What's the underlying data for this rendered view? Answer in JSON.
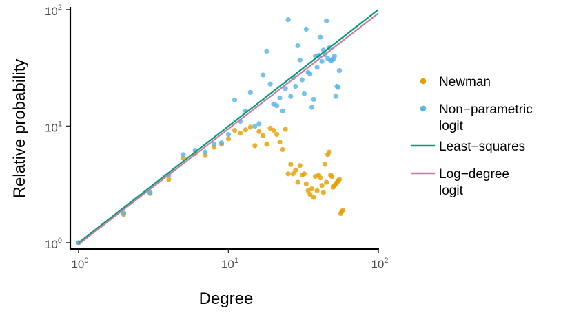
{
  "chart_data": {
    "type": "scatter",
    "xlabel": "Degree",
    "ylabel": "Relative probability",
    "x_scale": "log",
    "y_scale": "log",
    "xlim": [
      1,
      100
    ],
    "ylim": [
      1,
      100
    ],
    "x_ticks": [
      {
        "base": "10",
        "exp": "0",
        "value": 1
      },
      {
        "base": "10",
        "exp": "1",
        "value": 10
      },
      {
        "base": "10",
        "exp": "2",
        "value": 100
      }
    ],
    "y_ticks": [
      {
        "base": "10",
        "exp": "0",
        "value": 1
      },
      {
        "base": "10",
        "exp": "1",
        "value": 10
      },
      {
        "base": "10",
        "exp": "2",
        "value": 100
      }
    ],
    "grid": false,
    "legend_position": "right",
    "colors": {
      "newman": "#E69F00",
      "nonparametric": "#56B4E9",
      "least_squares": "#009E73",
      "log_degree": "#CC79A7"
    },
    "series": [
      {
        "name": "Newman",
        "kind": "points",
        "color": "#E69F00",
        "points": [
          [
            1,
            1.0
          ],
          [
            2,
            1.75
          ],
          [
            3,
            2.65
          ],
          [
            4,
            3.5
          ],
          [
            5,
            5.3
          ],
          [
            6,
            5.8
          ],
          [
            7,
            5.6
          ],
          [
            8,
            6.6
          ],
          [
            9,
            7.0
          ],
          [
            10,
            7.8
          ],
          [
            11,
            9.2
          ],
          [
            12,
            8.7
          ],
          [
            13,
            9.3
          ],
          [
            14,
            9.8
          ],
          [
            15,
            6.8
          ],
          [
            16,
            9.0
          ],
          [
            17,
            8.3
          ],
          [
            18,
            7.0
          ],
          [
            19,
            9.6
          ],
          [
            20,
            9.2
          ],
          [
            21,
            8.5
          ],
          [
            22,
            7.3
          ],
          [
            23,
            6.3
          ],
          [
            24,
            9.4
          ],
          [
            25,
            3.9
          ],
          [
            26,
            4.7
          ],
          [
            27,
            3.9
          ],
          [
            28,
            4.2
          ],
          [
            29,
            3.3
          ],
          [
            30,
            4.6
          ],
          [
            31,
            3.8
          ],
          [
            32,
            3.9
          ],
          [
            33,
            3.2
          ],
          [
            34,
            2.8
          ],
          [
            35,
            2.6
          ],
          [
            36,
            2.9
          ],
          [
            37,
            2.45
          ],
          [
            38,
            3.7
          ],
          [
            39,
            2.8
          ],
          [
            40,
            3.8
          ],
          [
            41,
            3.6
          ],
          [
            42,
            3.1
          ],
          [
            43,
            2.7
          ],
          [
            44,
            4.7
          ],
          [
            45,
            3.3
          ],
          [
            46,
            5.7
          ],
          [
            47,
            6.0
          ],
          [
            48,
            3.8
          ],
          [
            49,
            3.7
          ],
          [
            50,
            3.0
          ],
          [
            51,
            3.1
          ],
          [
            52,
            3.2
          ],
          [
            53,
            3.3
          ],
          [
            54,
            3.4
          ],
          [
            55,
            3.5
          ],
          [
            56,
            1.78
          ],
          [
            57,
            1.85
          ],
          [
            58,
            1.9
          ]
        ]
      },
      {
        "name": "Non−parametric logit",
        "kind": "points",
        "color": "#56B4E9",
        "points": [
          [
            1,
            1.0
          ],
          [
            2,
            1.8
          ],
          [
            3,
            2.7
          ],
          [
            4,
            3.8
          ],
          [
            5,
            5.7
          ],
          [
            6,
            6.2
          ],
          [
            7,
            6.0
          ],
          [
            8,
            7.0
          ],
          [
            9,
            7.2
          ],
          [
            10,
            8.5
          ],
          [
            11,
            16.8
          ],
          [
            12,
            11.0
          ],
          [
            13,
            13.5
          ],
          [
            14,
            19.5
          ],
          [
            15,
            10.0
          ],
          [
            16,
            10.5
          ],
          [
            17,
            27.5
          ],
          [
            18,
            44.0
          ],
          [
            19,
            23.0
          ],
          [
            20,
            15.5
          ],
          [
            21,
            15.0
          ],
          [
            22,
            17.5
          ],
          [
            23,
            13.5
          ],
          [
            24,
            21.0
          ],
          [
            25,
            82.0
          ],
          [
            26,
            18.0
          ],
          [
            27,
            26.0
          ],
          [
            28,
            22.0
          ],
          [
            29,
            49.0
          ],
          [
            30,
            37.0
          ],
          [
            31,
            25.0
          ],
          [
            32,
            19.0
          ],
          [
            33,
            68.0
          ],
          [
            34,
            29.0
          ],
          [
            35,
            28.0
          ],
          [
            36,
            14.5
          ],
          [
            37,
            17.0
          ],
          [
            38,
            40.0
          ],
          [
            39,
            32.0
          ],
          [
            40,
            40.5
          ],
          [
            41,
            58.0
          ],
          [
            42,
            36.0
          ],
          [
            43,
            45.0
          ],
          [
            44,
            41.0
          ],
          [
            45,
            80.0
          ],
          [
            46,
            38.0
          ],
          [
            47,
            47.0
          ],
          [
            48,
            36.5
          ],
          [
            49,
            37.0
          ],
          [
            50,
            37.5
          ],
          [
            51,
            40.0
          ],
          [
            52,
            18.0
          ],
          [
            53,
            22.0
          ],
          [
            54,
            21.5
          ],
          [
            55,
            30.0
          ]
        ]
      },
      {
        "name": "Least−squares",
        "kind": "line",
        "color": "#009E73",
        "points": [
          [
            1,
            1.0
          ],
          [
            100,
            100.0
          ]
        ]
      },
      {
        "name": "Log−degree logit",
        "kind": "line",
        "color": "#CC79A7",
        "points": [
          [
            1,
            0.97
          ],
          [
            100,
            93.0
          ]
        ]
      }
    ],
    "legend": [
      {
        "key": "newman",
        "kind": "point",
        "color": "#E69F00",
        "lines": [
          "Newman"
        ]
      },
      {
        "key": "nonparametric",
        "kind": "point",
        "color": "#56B4E9",
        "lines": [
          "Non−parametric",
          "logit"
        ]
      },
      {
        "key": "least_squares",
        "kind": "line",
        "color": "#009E73",
        "lines": [
          "Least−squares"
        ]
      },
      {
        "key": "log_degree",
        "kind": "line",
        "color": "#CC79A7",
        "lines": [
          "Log−degree",
          "logit"
        ]
      }
    ]
  }
}
